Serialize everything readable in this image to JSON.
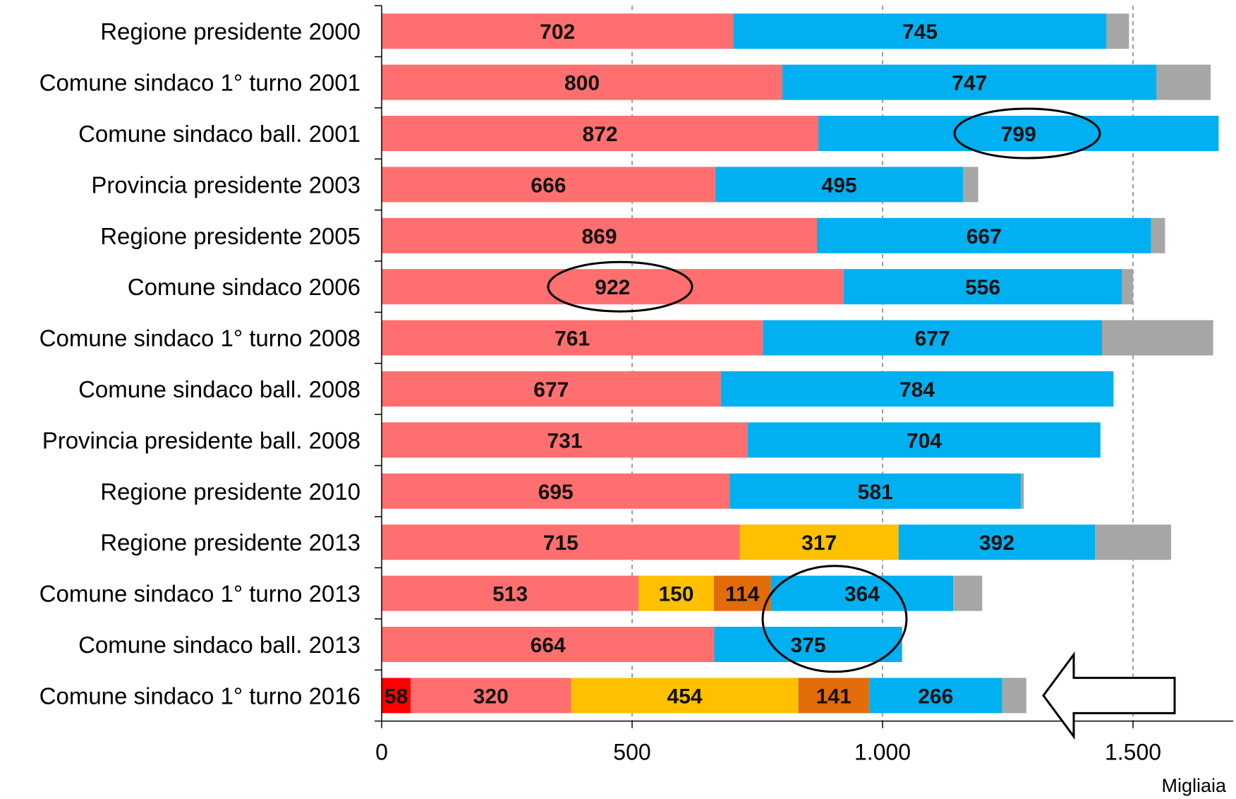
{
  "chart_data": {
    "type": "bar",
    "orientation": "horizontal",
    "stacked": true,
    "unit_label": "Migliaia",
    "xlim": [
      0,
      1700
    ],
    "ticks": [
      0,
      500,
      1000,
      1500
    ],
    "tick_labels": [
      "0",
      "500",
      "1.000",
      "1.500"
    ],
    "grid": "vertical-dashed",
    "categories": [
      "Regione presidente 2000",
      "Comune sindaco 1° turno 2001",
      "Comune sindaco ball. 2001",
      "Provincia presidente 2003",
      "Regione presidente 2005",
      "Comune sindaco 2006",
      "Comune sindaco 1° turno 2008",
      "Comune sindaco ball. 2008",
      "Provincia presidente ball. 2008",
      "Regione presidente 2010",
      "Regione presidente 2013",
      "Comune sindaco 1° turno 2013",
      "Comune sindaco ball. 2013",
      "Comune sindaco 1° turno 2016"
    ],
    "series": [
      {
        "color": "#ff0000",
        "values": [
          0,
          0,
          0,
          0,
          0,
          0,
          0,
          0,
          0,
          0,
          0,
          0,
          0,
          58
        ]
      },
      {
        "color": "#ff6f6f",
        "values": [
          702,
          800,
          872,
          666,
          869,
          922,
          761,
          677,
          731,
          695,
          715,
          513,
          664,
          320
        ]
      },
      {
        "color": "#ffc000",
        "values": [
          0,
          0,
          0,
          0,
          0,
          0,
          0,
          0,
          0,
          0,
          317,
          150,
          0,
          454
        ]
      },
      {
        "color": "#e26b0a",
        "values": [
          0,
          0,
          0,
          0,
          0,
          0,
          0,
          0,
          0,
          0,
          0,
          114,
          0,
          141
        ]
      },
      {
        "color": "#00b0f0",
        "values": [
          745,
          747,
          799,
          495,
          667,
          556,
          677,
          784,
          704,
          581,
          392,
          364,
          375,
          266
        ]
      },
      {
        "color": "#a6a6a6",
        "values": [
          45,
          108,
          0,
          30,
          28,
          22,
          222,
          0,
          0,
          6,
          152,
          58,
          0,
          48
        ]
      }
    ],
    "annotations": [
      {
        "type": "ellipse",
        "category": "Comune sindaco ball. 2001",
        "around_value": 799
      },
      {
        "type": "ellipse",
        "category": "Comune sindaco 2006",
        "around_value": 922
      },
      {
        "type": "ellipse",
        "category": "Comune sindaco 1° turno 2013 / Comune sindaco ball. 2013",
        "around_value": 364
      },
      {
        "type": "arrow",
        "direction": "left",
        "category": "Comune sindaco 1° turno 2016"
      }
    ]
  }
}
